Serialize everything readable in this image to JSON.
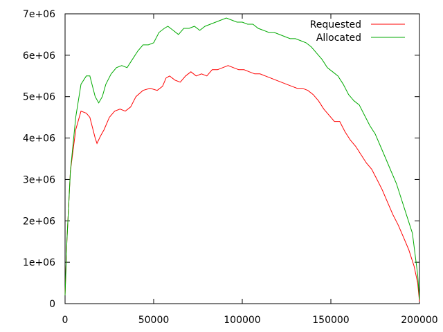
{
  "chart_data": {
    "type": "line",
    "title": "",
    "xlabel": "",
    "ylabel": "",
    "xlim": [
      0,
      200000
    ],
    "ylim": [
      0,
      7000000
    ],
    "xticks": [
      {
        "value": 0,
        "label": "0"
      },
      {
        "value": 50000,
        "label": "50000"
      },
      {
        "value": 100000,
        "label": "100000"
      },
      {
        "value": 150000,
        "label": "150000"
      },
      {
        "value": 200000,
        "label": "200000"
      }
    ],
    "yticks": [
      {
        "value": 0,
        "label": "0"
      },
      {
        "value": 1000000,
        "label": "1e+06"
      },
      {
        "value": 2000000,
        "label": "2e+06"
      },
      {
        "value": 3000000,
        "label": "3e+06"
      },
      {
        "value": 4000000,
        "label": "4e+06"
      },
      {
        "value": 5000000,
        "label": "5e+06"
      },
      {
        "value": 6000000,
        "label": "6e+06"
      },
      {
        "value": 7000000,
        "label": "7e+06"
      }
    ],
    "grid": false,
    "legend_position": "top-right",
    "series": [
      {
        "name": "Requested",
        "color": "#ff0000",
        "x": [
          0,
          1000,
          3000,
          6000,
          9000,
          12000,
          14000,
          17000,
          18000,
          20000,
          22000,
          25000,
          28000,
          31000,
          34000,
          37000,
          40000,
          44000,
          48000,
          52000,
          55000,
          57000,
          59000,
          62000,
          65000,
          68000,
          71000,
          74000,
          77000,
          80000,
          83000,
          86000,
          89000,
          92000,
          95000,
          98000,
          101000,
          104000,
          107000,
          110000,
          113000,
          116000,
          119000,
          122000,
          125000,
          128000,
          131000,
          134000,
          137000,
          140000,
          143000,
          146000,
          149000,
          152000,
          155000,
          158000,
          161000,
          164000,
          167000,
          170000,
          173000,
          176000,
          179000,
          182000,
          185000,
          188000,
          191000,
          194000,
          197000,
          199000,
          200000
        ],
        "y": [
          200000,
          1500000,
          3200000,
          4200000,
          4650000,
          4600000,
          4500000,
          4000000,
          3870000,
          4050000,
          4200000,
          4500000,
          4650000,
          4700000,
          4650000,
          4750000,
          5000000,
          5150000,
          5200000,
          5150000,
          5250000,
          5450000,
          5500000,
          5400000,
          5350000,
          5500000,
          5600000,
          5500000,
          5550000,
          5500000,
          5650000,
          5650000,
          5700000,
          5750000,
          5700000,
          5650000,
          5650000,
          5600000,
          5550000,
          5550000,
          5500000,
          5450000,
          5400000,
          5350000,
          5300000,
          5250000,
          5200000,
          5200000,
          5150000,
          5050000,
          4900000,
          4700000,
          4550000,
          4400000,
          4400000,
          4150000,
          3950000,
          3800000,
          3600000,
          3400000,
          3250000,
          3000000,
          2750000,
          2450000,
          2150000,
          1900000,
          1600000,
          1300000,
          900000,
          500000,
          50000
        ]
      },
      {
        "name": "Allocated",
        "color": "#00aa00",
        "x": [
          0,
          1000,
          3000,
          6000,
          9000,
          12000,
          14000,
          17000,
          19000,
          21000,
          23000,
          26000,
          29000,
          32000,
          35000,
          38000,
          41000,
          44000,
          47000,
          50000,
          53000,
          56000,
          58000,
          61000,
          64000,
          67000,
          70000,
          73000,
          76000,
          79000,
          82000,
          85000,
          88000,
          91000,
          94000,
          97000,
          100000,
          103000,
          106000,
          109000,
          112000,
          115000,
          118000,
          121000,
          124000,
          127000,
          130000,
          133000,
          136000,
          139000,
          142000,
          145000,
          148000,
          151000,
          154000,
          157000,
          160000,
          163000,
          166000,
          169000,
          172000,
          175000,
          178000,
          181000,
          184000,
          187000,
          190000,
          193000,
          196000,
          199000,
          200000
        ],
        "y": [
          200000,
          1500000,
          3200000,
          4500000,
          5300000,
          5500000,
          5500000,
          5000000,
          4850000,
          5000000,
          5300000,
          5550000,
          5700000,
          5750000,
          5700000,
          5900000,
          6100000,
          6250000,
          6250000,
          6300000,
          6550000,
          6650000,
          6700000,
          6600000,
          6500000,
          6650000,
          6650000,
          6700000,
          6600000,
          6700000,
          6750000,
          6800000,
          6850000,
          6900000,
          6850000,
          6800000,
          6800000,
          6750000,
          6750000,
          6650000,
          6600000,
          6550000,
          6550000,
          6500000,
          6450000,
          6400000,
          6400000,
          6350000,
          6300000,
          6200000,
          6050000,
          5900000,
          5700000,
          5600000,
          5500000,
          5300000,
          5050000,
          4900000,
          4800000,
          4550000,
          4300000,
          4100000,
          3800000,
          3500000,
          3200000,
          2900000,
          2500000,
          2100000,
          1700000,
          700000,
          100000
        ]
      }
    ]
  }
}
